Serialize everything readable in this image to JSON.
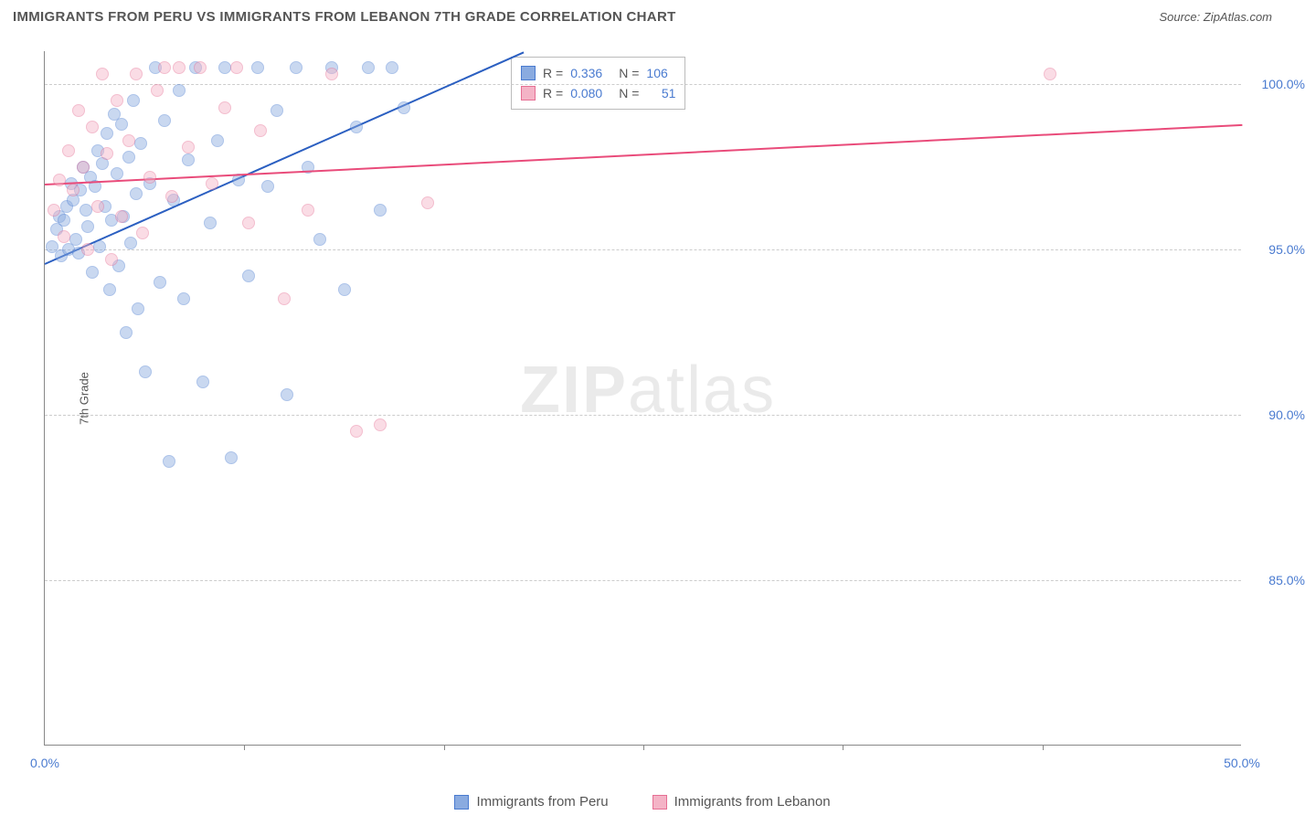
{
  "title": "IMMIGRANTS FROM PERU VS IMMIGRANTS FROM LEBANON 7TH GRADE CORRELATION CHART",
  "source": "Source: ZipAtlas.com",
  "watermark": {
    "bold": "ZIP",
    "light": "atlas"
  },
  "chart": {
    "type": "scatter",
    "ylabel": "7th Grade",
    "xlim": [
      0,
      50
    ],
    "ylim": [
      80,
      101
    ],
    "y_ticks": [
      85,
      90,
      95,
      100
    ],
    "y_tick_labels": [
      "85.0%",
      "90.0%",
      "95.0%",
      "100.0%"
    ],
    "x_ticks": [
      0,
      50
    ],
    "x_tick_labels": [
      "0.0%",
      "50.0%"
    ],
    "x_minor_ticks": [
      8.33,
      16.67,
      25,
      33.33,
      41.67
    ],
    "background_color": "#ffffff",
    "grid_color": "#cccccc",
    "axis_label_color": "#4a7bd0",
    "marker_radius": 7,
    "marker_opacity": 0.45,
    "series": [
      {
        "name": "Immigrants from Peru",
        "color_fill": "#8aabe0",
        "color_stroke": "#4a7bd0",
        "line_color": "#2b5fc1",
        "R": "0.336",
        "N": "106",
        "trend": {
          "x1": 0,
          "y1": 94.6,
          "x2": 20,
          "y2": 101
        },
        "points": [
          [
            0.3,
            95.1
          ],
          [
            0.5,
            95.6
          ],
          [
            0.6,
            96.0
          ],
          [
            0.7,
            94.8
          ],
          [
            0.8,
            95.9
          ],
          [
            0.9,
            96.3
          ],
          [
            1.0,
            95.0
          ],
          [
            1.1,
            97.0
          ],
          [
            1.2,
            96.5
          ],
          [
            1.3,
            95.3
          ],
          [
            1.4,
            94.9
          ],
          [
            1.5,
            96.8
          ],
          [
            1.6,
            97.5
          ],
          [
            1.7,
            96.2
          ],
          [
            1.8,
            95.7
          ],
          [
            1.9,
            97.2
          ],
          [
            2.0,
            94.3
          ],
          [
            2.1,
            96.9
          ],
          [
            2.2,
            98.0
          ],
          [
            2.3,
            95.1
          ],
          [
            2.4,
            97.6
          ],
          [
            2.5,
            96.3
          ],
          [
            2.6,
            98.5
          ],
          [
            2.7,
            93.8
          ],
          [
            2.8,
            95.9
          ],
          [
            2.9,
            99.1
          ],
          [
            3.0,
            97.3
          ],
          [
            3.1,
            94.5
          ],
          [
            3.2,
            98.8
          ],
          [
            3.3,
            96.0
          ],
          [
            3.4,
            92.5
          ],
          [
            3.5,
            97.8
          ],
          [
            3.6,
            95.2
          ],
          [
            3.7,
            99.5
          ],
          [
            3.8,
            96.7
          ],
          [
            3.9,
            93.2
          ],
          [
            4.0,
            98.2
          ],
          [
            4.2,
            91.3
          ],
          [
            4.4,
            97.0
          ],
          [
            4.6,
            100.5
          ],
          [
            4.8,
            94.0
          ],
          [
            5.0,
            98.9
          ],
          [
            5.2,
            88.6
          ],
          [
            5.4,
            96.5
          ],
          [
            5.6,
            99.8
          ],
          [
            5.8,
            93.5
          ],
          [
            6.0,
            97.7
          ],
          [
            6.3,
            100.5
          ],
          [
            6.6,
            91.0
          ],
          [
            6.9,
            95.8
          ],
          [
            7.2,
            98.3
          ],
          [
            7.5,
            100.5
          ],
          [
            7.8,
            88.7
          ],
          [
            8.1,
            97.1
          ],
          [
            8.5,
            94.2
          ],
          [
            8.9,
            100.5
          ],
          [
            9.3,
            96.9
          ],
          [
            9.7,
            99.2
          ],
          [
            10.1,
            90.6
          ],
          [
            10.5,
            100.5
          ],
          [
            11.0,
            97.5
          ],
          [
            11.5,
            95.3
          ],
          [
            12.0,
            100.5
          ],
          [
            12.5,
            93.8
          ],
          [
            13.0,
            98.7
          ],
          [
            13.5,
            100.5
          ],
          [
            14.0,
            96.2
          ],
          [
            14.5,
            100.5
          ],
          [
            15.0,
            99.3
          ]
        ]
      },
      {
        "name": "Immigrants from Lebanon",
        "color_fill": "#f4b3c6",
        "color_stroke": "#e66f94",
        "line_color": "#e94b7a",
        "R": "0.080",
        "N": "51",
        "trend": {
          "x1": 0,
          "y1": 97.0,
          "x2": 50,
          "y2": 98.8
        },
        "points": [
          [
            0.4,
            96.2
          ],
          [
            0.6,
            97.1
          ],
          [
            0.8,
            95.4
          ],
          [
            1.0,
            98.0
          ],
          [
            1.2,
            96.8
          ],
          [
            1.4,
            99.2
          ],
          [
            1.6,
            97.5
          ],
          [
            1.8,
            95.0
          ],
          [
            2.0,
            98.7
          ],
          [
            2.2,
            96.3
          ],
          [
            2.4,
            100.3
          ],
          [
            2.6,
            97.9
          ],
          [
            2.8,
            94.7
          ],
          [
            3.0,
            99.5
          ],
          [
            3.2,
            96.0
          ],
          [
            3.5,
            98.3
          ],
          [
            3.8,
            100.3
          ],
          [
            4.1,
            95.5
          ],
          [
            4.4,
            97.2
          ],
          [
            4.7,
            99.8
          ],
          [
            5.0,
            100.5
          ],
          [
            5.3,
            96.6
          ],
          [
            5.6,
            100.5
          ],
          [
            6.0,
            98.1
          ],
          [
            6.5,
            100.5
          ],
          [
            7.0,
            97.0
          ],
          [
            7.5,
            99.3
          ],
          [
            8.0,
            100.5
          ],
          [
            8.5,
            95.8
          ],
          [
            9.0,
            98.6
          ],
          [
            10.0,
            93.5
          ],
          [
            11.0,
            96.2
          ],
          [
            12.0,
            100.3
          ],
          [
            13.0,
            89.5
          ],
          [
            14.0,
            89.7
          ],
          [
            16.0,
            96.4
          ],
          [
            42.0,
            100.3
          ]
        ]
      }
    ]
  },
  "legend": {
    "series1": "Immigrants from Peru",
    "series2": "Immigrants from Lebanon"
  },
  "stats_box": {
    "R_label": "R =",
    "N_label": "N ="
  }
}
